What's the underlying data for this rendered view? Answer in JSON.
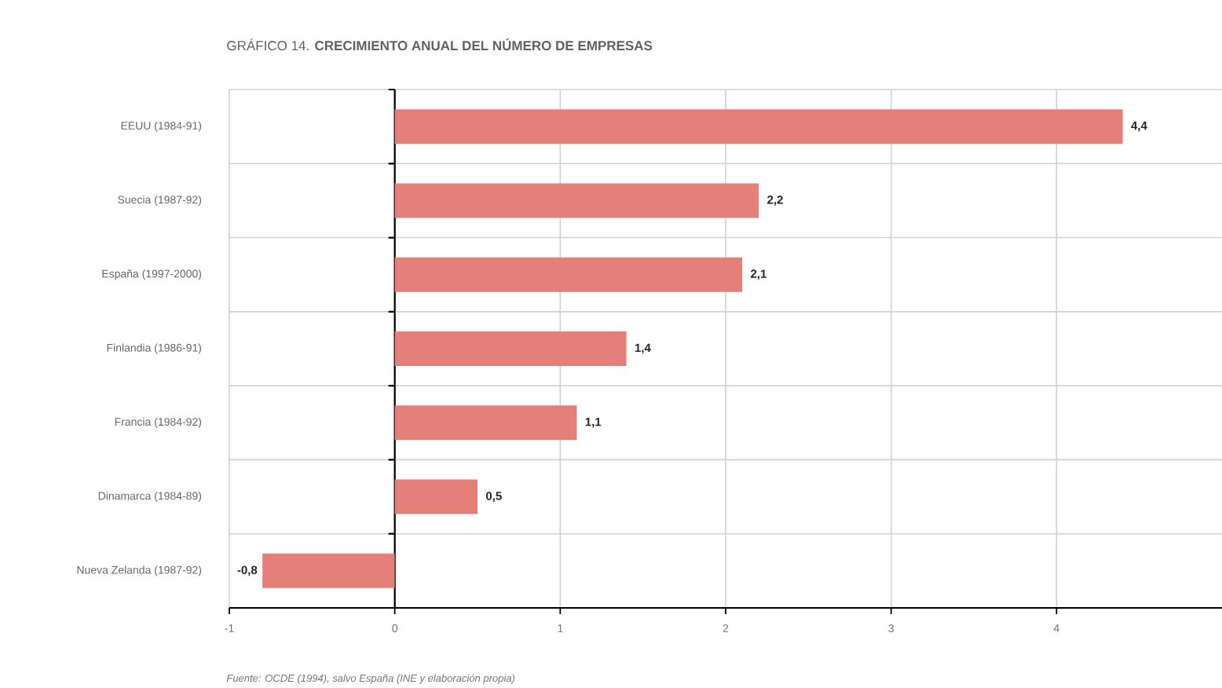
{
  "chart_data": {
    "type": "bar",
    "orientation": "horizontal",
    "title": "GRÁFICO 14. **CRECIMIENTO ANUAL DEL NÚMERO DE EMPRESAS**",
    "categories": [
      "EEUU (1984-91)",
      "Suecia (1987-92)",
      "España (1997-2000)",
      "Finlandia (1986-91)",
      "Francia (1984-92)",
      "Dinamarca (1984-89)",
      "Nueva Zelanda (1987-92)"
    ],
    "values": [
      4.4,
      2.2,
      2.1,
      1.4,
      1.1,
      0.5,
      -0.8
    ],
    "value_labels": [
      "4,4",
      "2,2",
      "2,1",
      "1,4",
      "1,1",
      "0,5",
      "-0,8"
    ],
    "color": "#e57f7a",
    "xlim": [
      -1,
      5
    ],
    "xticks": [
      -1,
      0,
      1,
      2,
      3,
      4
    ],
    "grid": true,
    "annotations": [
      "Fuente: OCDE (1994), salvo España (INE y elaboración propia)"
    ]
  }
}
